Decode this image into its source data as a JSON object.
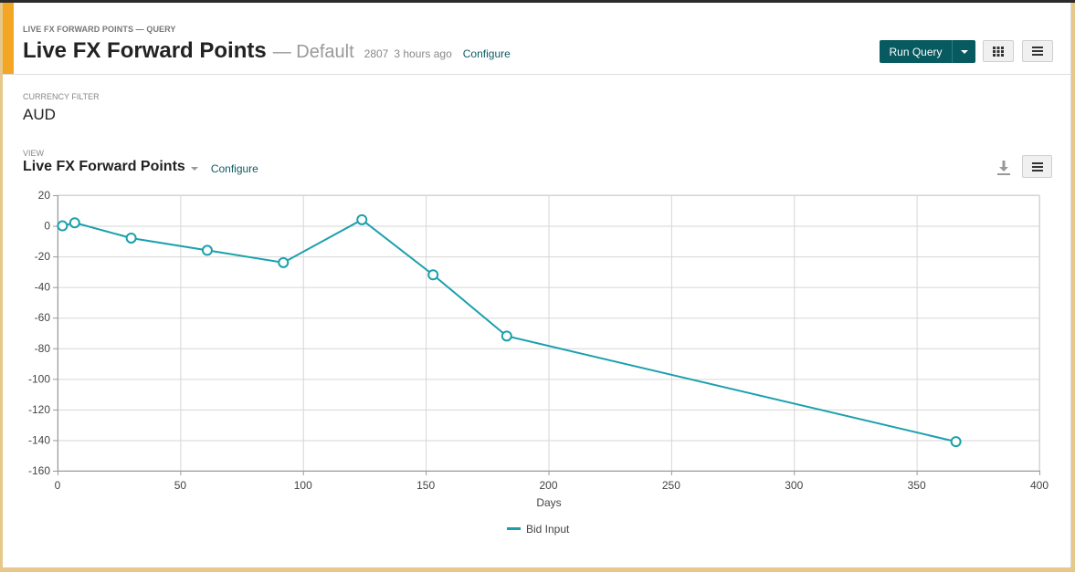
{
  "header": {
    "kicker": "LIVE FX FORWARD POINTS — QUERY",
    "title": "Live FX Forward Points",
    "subtitle": "— Default",
    "id": "2807",
    "time": "3 hours ago",
    "configure": "Configure",
    "run_query": "Run Query"
  },
  "filter": {
    "label": "CURRENCY FILTER",
    "value": "AUD"
  },
  "view": {
    "label": "VIEW",
    "title": "Live FX Forward Points",
    "configure": "Configure"
  },
  "colors": {
    "accent": "#f2a623",
    "primary_button": "#075a5f",
    "series": "#1aa0ad"
  },
  "chart_data": {
    "type": "line",
    "xlabel": "Days",
    "ylabel": "",
    "xlim": [
      0,
      400
    ],
    "ylim": [
      -160,
      20
    ],
    "xticks": [
      0,
      50,
      100,
      150,
      200,
      250,
      300,
      350,
      400
    ],
    "yticks": [
      20,
      0,
      -20,
      -40,
      -60,
      -80,
      -100,
      -120,
      -140,
      -160
    ],
    "grid": true,
    "legend": "bottom-center",
    "series": [
      {
        "name": "Bid Input",
        "x": [
          2,
          7,
          30,
          61,
          92,
          124,
          153,
          183,
          366
        ],
        "values": [
          0,
          2,
          -8,
          -16,
          -24,
          4,
          -32,
          -72,
          -141
        ]
      }
    ]
  }
}
